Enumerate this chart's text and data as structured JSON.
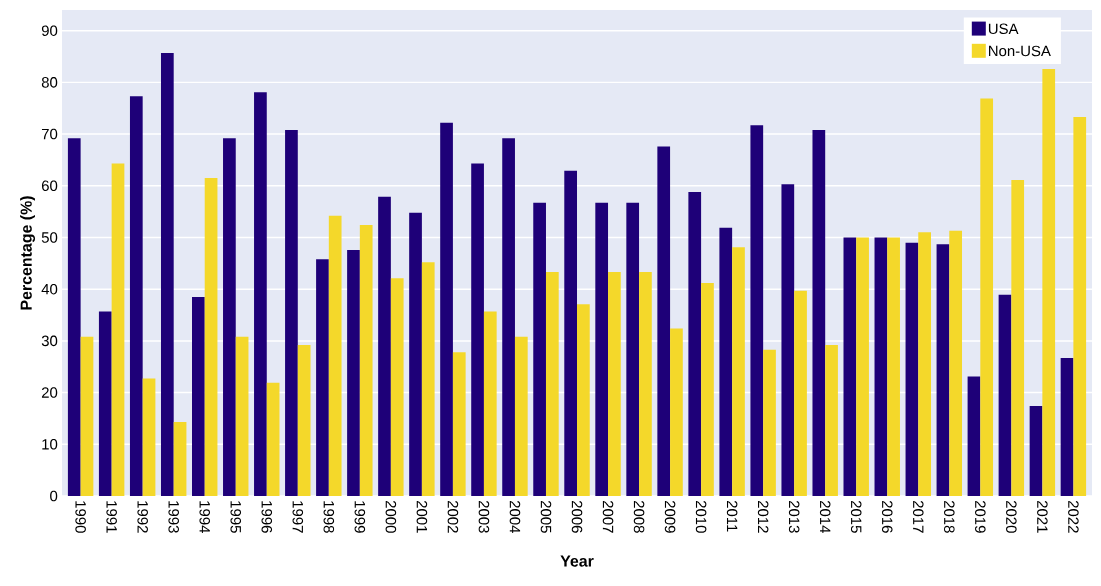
{
  "chart_data": {
    "type": "bar",
    "xlabel": "Year",
    "ylabel": "Percentage (%)",
    "categories": [
      "1990",
      "1991",
      "1992",
      "1993",
      "1994",
      "1995",
      "1996",
      "1997",
      "1998",
      "1999",
      "2000",
      "2001",
      "2002",
      "2003",
      "2004",
      "2005",
      "2006",
      "2007",
      "2008",
      "2009",
      "2010",
      "2011",
      "2012",
      "2013",
      "2014",
      "2015",
      "2016",
      "2017",
      "2018",
      "2019",
      "2020",
      "2021",
      "2022"
    ],
    "series": [
      {
        "name": "USA",
        "color": "#1e0078",
        "values": [
          69.2,
          35.7,
          77.3,
          85.7,
          38.5,
          69.2,
          78.1,
          70.8,
          45.8,
          47.6,
          57.9,
          54.8,
          72.2,
          64.3,
          69.2,
          56.7,
          62.9,
          56.7,
          56.7,
          67.6,
          58.8,
          51.9,
          71.7,
          60.3,
          70.8,
          50,
          50,
          49,
          48.7,
          23.1,
          38.9,
          17.4,
          26.7
        ]
      },
      {
        "name": "Non-USA",
        "color": "#f4d82a",
        "values": [
          30.8,
          64.3,
          22.7,
          14.3,
          61.5,
          30.8,
          21.9,
          29.2,
          54.2,
          52.4,
          42.1,
          45.2,
          27.8,
          35.7,
          30.8,
          43.3,
          37.1,
          43.3,
          43.3,
          32.4,
          41.2,
          48.1,
          28.3,
          39.7,
          29.2,
          50,
          50,
          51,
          51.3,
          76.9,
          61.1,
          82.6,
          73.3
        ]
      }
    ],
    "ylim": [
      0,
      94
    ],
    "yticks": [
      0,
      10,
      20,
      30,
      40,
      50,
      60,
      70,
      80,
      90
    ],
    "grid": "y",
    "legend": "top right"
  }
}
